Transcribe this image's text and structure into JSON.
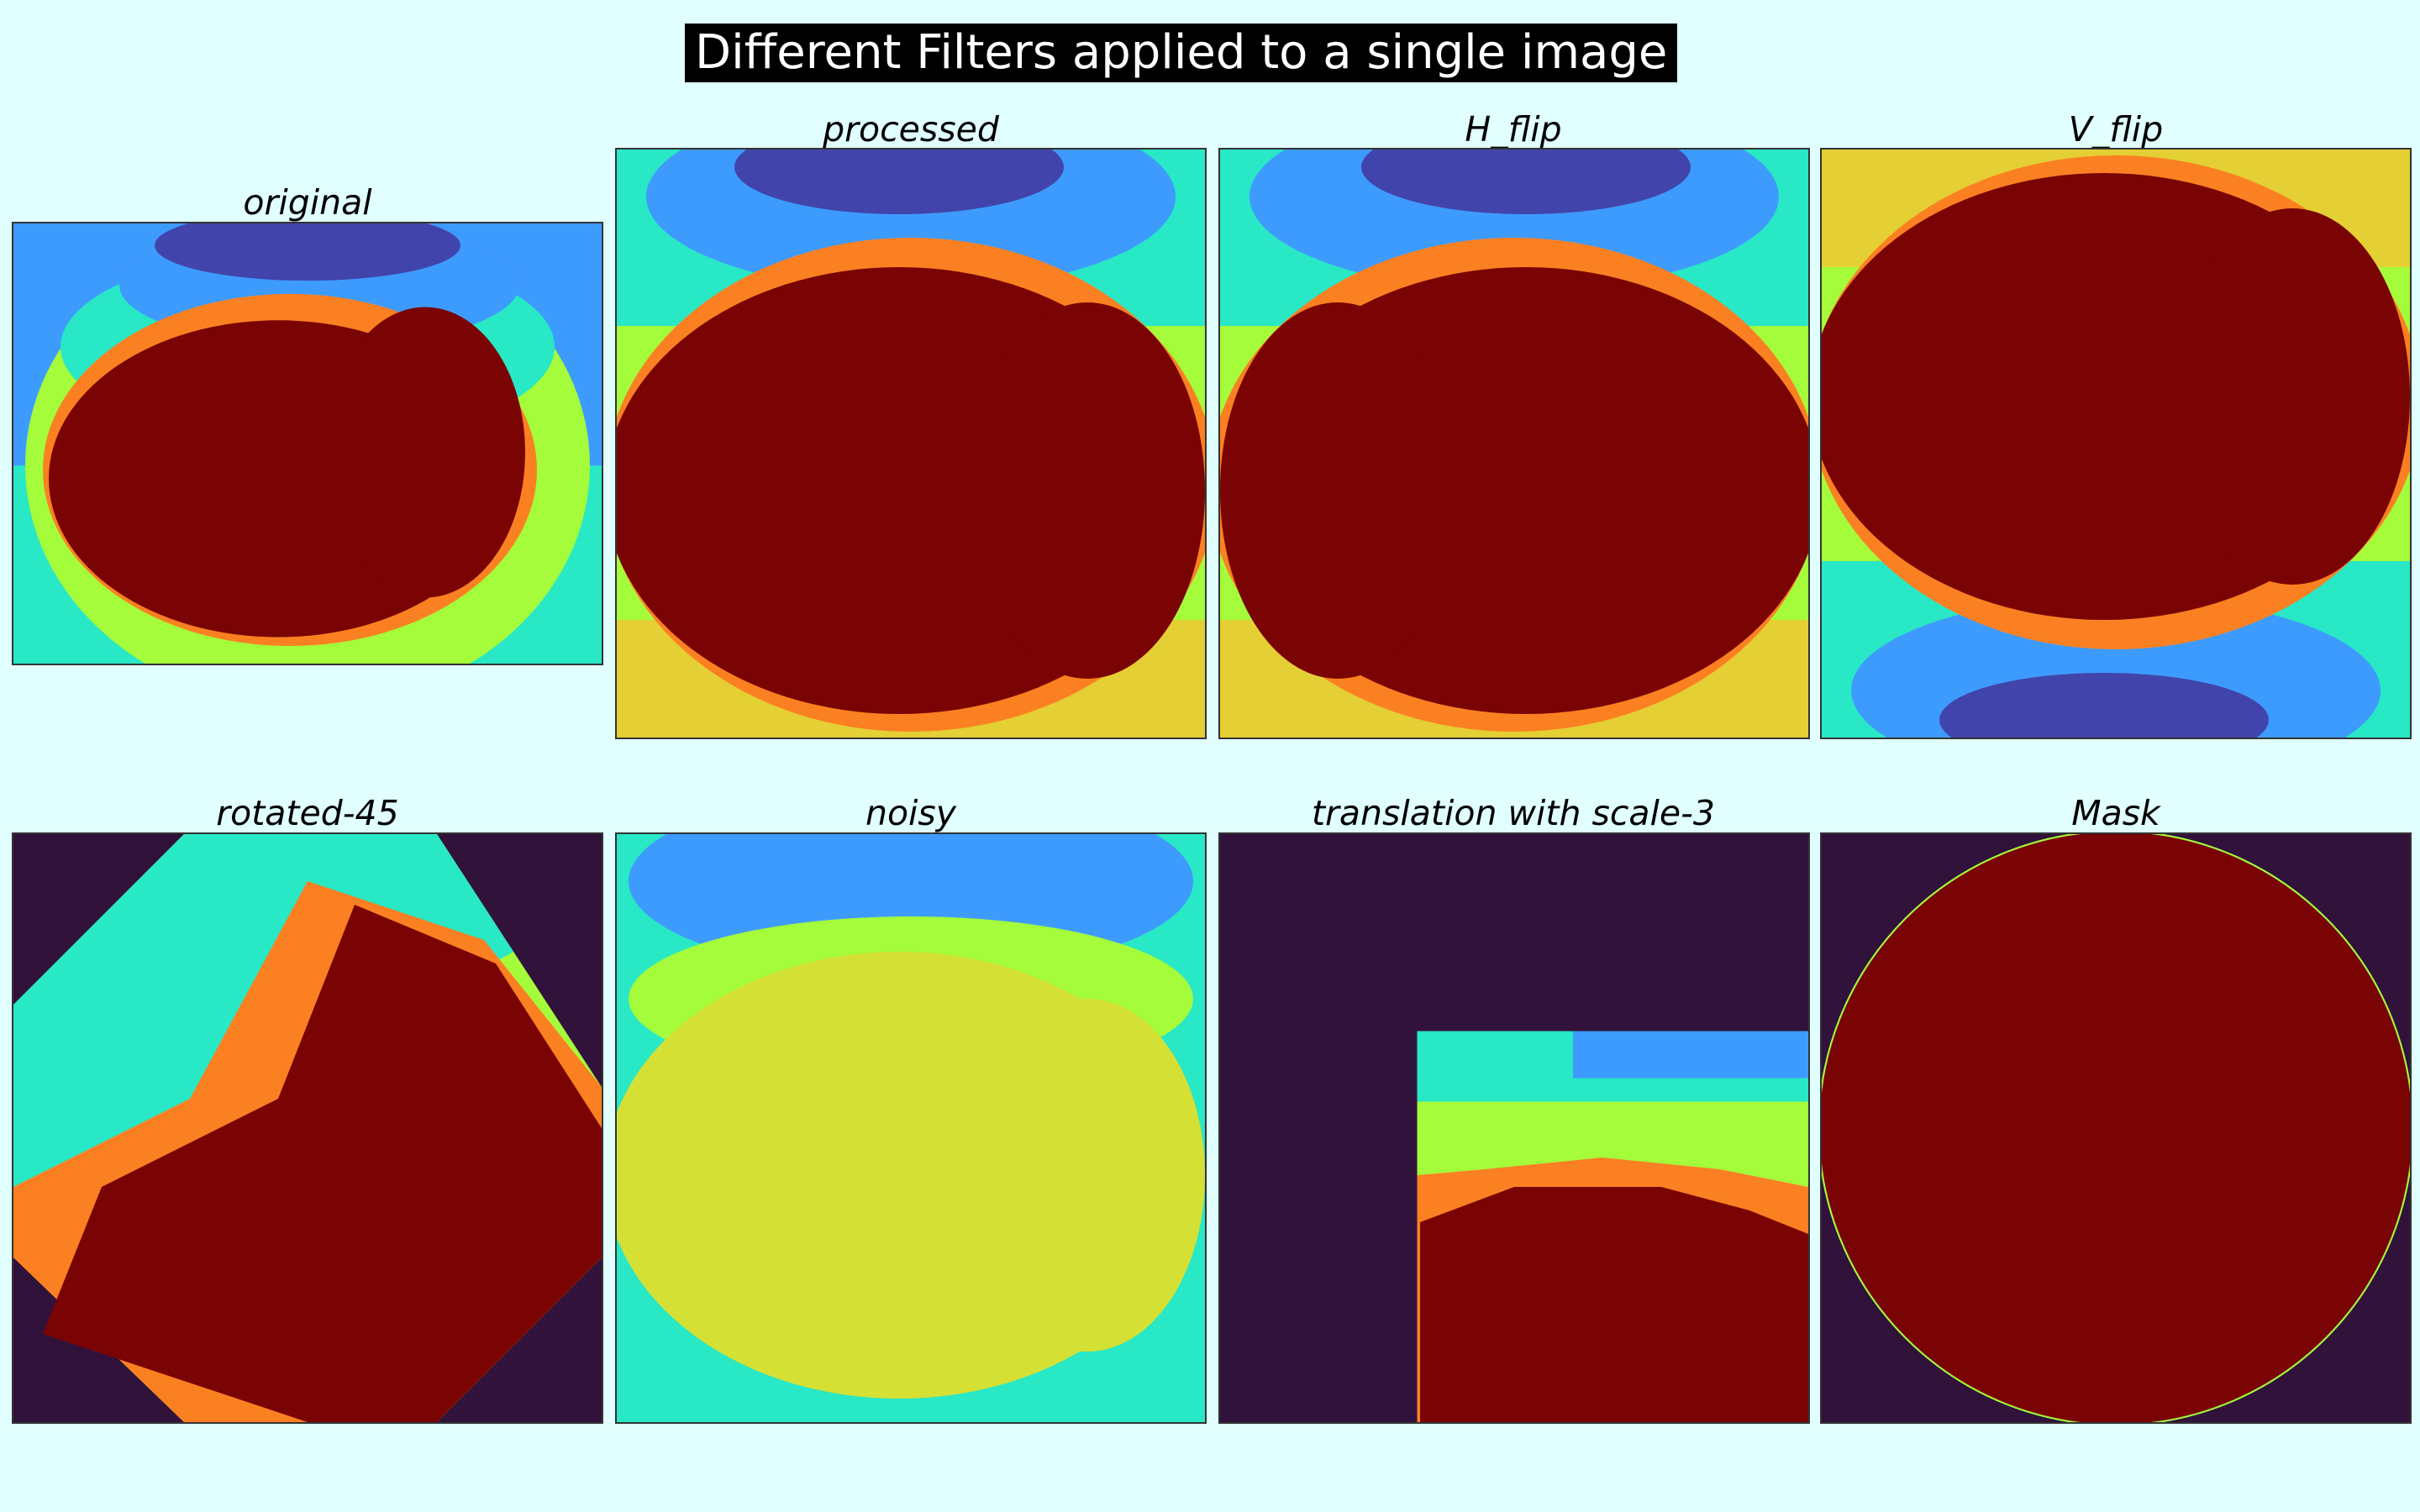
{
  "figure": {
    "title": "Different Filters applied to a single image"
  },
  "panels": [
    {
      "id": "original",
      "title": "original"
    },
    {
      "id": "processed",
      "title": "processed"
    },
    {
      "id": "hflip",
      "title": "H_flip"
    },
    {
      "id": "vflip",
      "title": "V_flip"
    },
    {
      "id": "rotated",
      "title": "rotated-45"
    },
    {
      "id": "noisy",
      "title": "noisy"
    },
    {
      "id": "translation",
      "title": "translation with scale-3"
    },
    {
      "id": "mask",
      "title": "Mask"
    }
  ],
  "colors": {
    "background": "#e0fffe",
    "dark_red": "#7a0403",
    "dark_purple": "#30123b",
    "noisy_yellow": "#d5e034",
    "turbo_orange": "#fb8022",
    "turbo_yellow": "#e4cf34",
    "turbo_green": "#a4fc3b",
    "turbo_cyan": "#28e8c6",
    "turbo_blue": "#3e9bfe",
    "turbo_indigo": "#4145ab"
  }
}
